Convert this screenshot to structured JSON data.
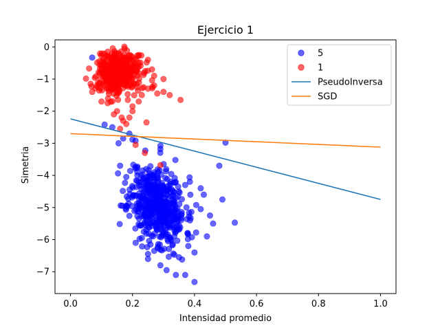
{
  "chart_data": {
    "type": "scatter",
    "title": "Ejercicio 1",
    "xlabel": "Intensidad promedio",
    "ylabel": "Simetria",
    "xlim": [
      -0.05,
      1.05
    ],
    "ylim": [
      -7.68,
      0.22
    ],
    "xticks": [
      0.0,
      0.2,
      0.4,
      0.6,
      0.8,
      1.0
    ],
    "xtick_labels": [
      "0.0",
      "0.2",
      "0.4",
      "0.6",
      "0.8",
      "1.0"
    ],
    "yticks": [
      0,
      -1,
      -2,
      -3,
      -4,
      -5,
      -6,
      -7
    ],
    "ytick_labels": [
      "0",
      "−1",
      "−2",
      "−3",
      "−4",
      "−5",
      "−6",
      "−7"
    ],
    "grid": false,
    "legend_position": "top-right",
    "series": [
      {
        "name": "5",
        "kind": "scatter",
        "color": "#0000ff",
        "cluster": {
          "count": 520,
          "center": [
            0.28,
            -4.9
          ],
          "spread": [
            0.045,
            0.6
          ],
          "tilt": -8.5,
          "seed": 11
        },
        "points": [
          [
            0.07,
            -0.33
          ],
          [
            0.11,
            -2.42
          ],
          [
            0.135,
            -2.5
          ],
          [
            0.19,
            -2.7
          ],
          [
            0.21,
            -2.92
          ],
          [
            0.29,
            -3.18
          ],
          [
            0.5,
            -2.98
          ],
          [
            0.48,
            -3.7
          ],
          [
            0.37,
            -4.3
          ],
          [
            0.42,
            -4.4
          ],
          [
            0.43,
            -4.6
          ],
          [
            0.49,
            -4.75
          ],
          [
            0.53,
            -5.47
          ],
          [
            0.45,
            -5.25
          ],
          [
            0.46,
            -5.5
          ],
          [
            0.44,
            -5.9
          ],
          [
            0.38,
            -6.2
          ],
          [
            0.35,
            -6.55
          ],
          [
            0.36,
            -6.62
          ],
          [
            0.29,
            -6.8
          ],
          [
            0.31,
            -6.95
          ],
          [
            0.34,
            -7.1
          ],
          [
            0.37,
            -7.1
          ],
          [
            0.4,
            -7.32
          ],
          [
            0.23,
            -5.95
          ],
          [
            0.21,
            -6.1
          ],
          [
            0.27,
            -6.35
          ],
          [
            0.18,
            -4.05
          ],
          [
            0.16,
            -3.7
          ],
          [
            0.155,
            -3.0
          ],
          [
            0.17,
            -2.85
          ],
          [
            0.33,
            -6.15
          ],
          [
            0.4,
            -6.4
          ],
          [
            0.25,
            -6.45
          ],
          [
            0.42,
            -5.05
          ]
        ]
      },
      {
        "name": "1",
        "kind": "scatter",
        "color": "#ff0000",
        "cluster": {
          "count": 420,
          "center": [
            0.155,
            -0.8
          ],
          "spread": [
            0.035,
            0.32
          ],
          "tilt": 0,
          "seed": 7
        },
        "points": [
          [
            0.06,
            -0.67
          ],
          [
            0.065,
            -1.15
          ],
          [
            0.07,
            -1.4
          ],
          [
            0.1,
            -1.7
          ],
          [
            0.12,
            -1.75
          ],
          [
            0.15,
            -2.0
          ],
          [
            0.165,
            -2.2
          ],
          [
            0.17,
            -2.3
          ],
          [
            0.18,
            -2.4
          ],
          [
            0.19,
            -2.2
          ],
          [
            0.2,
            -1.85
          ],
          [
            0.22,
            -1.7
          ],
          [
            0.23,
            -1.5
          ],
          [
            0.25,
            -1.3
          ],
          [
            0.27,
            -1.2
          ],
          [
            0.28,
            -1.45
          ],
          [
            0.3,
            -1.4
          ],
          [
            0.32,
            -1.5
          ],
          [
            0.355,
            -1.65
          ],
          [
            0.245,
            -2.35
          ],
          [
            0.21,
            -3.05
          ],
          [
            0.24,
            -3.3
          ],
          [
            0.29,
            -3.68
          ],
          [
            0.25,
            -0.4
          ],
          [
            0.22,
            -0.5
          ],
          [
            0.27,
            -0.9
          ],
          [
            0.3,
            -1.0
          ],
          [
            0.14,
            -2.1
          ],
          [
            0.16,
            -2.55
          ],
          [
            0.12,
            -0.15
          ],
          [
            0.2,
            -2.0
          ],
          [
            0.185,
            -1.65
          ]
        ]
      },
      {
        "name": "PseudoInversa",
        "kind": "line",
        "color": "#1f77b4",
        "x": [
          0.0,
          1.0
        ],
        "y": [
          -2.24,
          -4.75
        ]
      },
      {
        "name": "SGD",
        "kind": "line",
        "color": "#ff7f0e",
        "x": [
          0.0,
          1.0
        ],
        "y": [
          -2.7,
          -3.12
        ]
      }
    ]
  }
}
